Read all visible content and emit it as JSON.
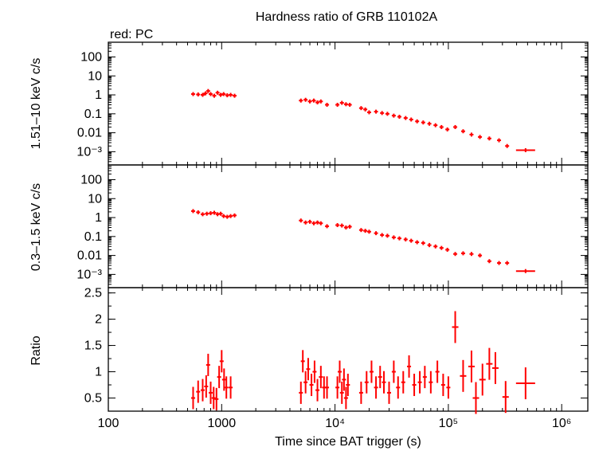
{
  "title": "Hardness ratio of GRB 110102A",
  "subtitle": "red: PC",
  "colors": {
    "series": "#ff0000",
    "axes": "#000000",
    "background": "#ffffff"
  },
  "x_axis": {
    "label": "Time since BAT trigger (s)",
    "scale": "log",
    "range": [
      100,
      1700000
    ],
    "tick_labels": [
      "100",
      "1000",
      "10⁴",
      "10⁵",
      "10⁶"
    ]
  },
  "chart_data": [
    {
      "type": "scatter",
      "panel": "hard band",
      "ylabel": "1.51–10 keV c/s",
      "yscale": "log",
      "ylim": [
        0.0002,
        600
      ],
      "ytick_labels": [
        "100",
        "10",
        "1",
        "0.1",
        "0.01",
        "10⁻³"
      ],
      "grid": false,
      "series": [
        {
          "name": "PC",
          "points": [
            [
              560,
              1.1
            ],
            [
              620,
              1.05
            ],
            [
              680,
              1.0
            ],
            [
              720,
              1.2
            ],
            [
              760,
              1.6
            ],
            [
              800,
              1.1
            ],
            [
              860,
              0.9
            ],
            [
              920,
              1.3
            ],
            [
              980,
              1.0
            ],
            [
              1040,
              1.1
            ],
            [
              1120,
              0.95
            ],
            [
              1200,
              1.0
            ],
            [
              1300,
              0.9
            ],
            [
              5000,
              0.5
            ],
            [
              5500,
              0.55
            ],
            [
              6000,
              0.45
            ],
            [
              6500,
              0.5
            ],
            [
              7000,
              0.4
            ],
            [
              7500,
              0.45
            ],
            [
              8500,
              0.3
            ],
            [
              10500,
              0.3
            ],
            [
              11500,
              0.38
            ],
            [
              12500,
              0.32
            ],
            [
              13500,
              0.3
            ],
            [
              17000,
              0.2
            ],
            [
              18500,
              0.17
            ],
            [
              20000,
              0.12
            ],
            [
              23000,
              0.13
            ],
            [
              26000,
              0.11
            ],
            [
              29000,
              0.1
            ],
            [
              33000,
              0.08
            ],
            [
              37000,
              0.07
            ],
            [
              42000,
              0.06
            ],
            [
              47000,
              0.05
            ],
            [
              53000,
              0.04
            ],
            [
              60000,
              0.035
            ],
            [
              68000,
              0.03
            ],
            [
              77000,
              0.025
            ],
            [
              87000,
              0.02
            ],
            [
              98000,
              0.015
            ],
            [
              115000,
              0.02
            ],
            [
              135000,
              0.012
            ],
            [
              160000,
              0.008
            ],
            [
              190000,
              0.006
            ],
            [
              230000,
              0.005
            ],
            [
              280000,
              0.004
            ],
            [
              330000,
              0.002
            ],
            [
              480000,
              0.0012
            ]
          ]
        }
      ]
    },
    {
      "type": "scatter",
      "panel": "soft band",
      "ylabel": "0.3–1.5 keV c/s",
      "yscale": "log",
      "ylim": [
        0.0002,
        600
      ],
      "ytick_labels": [
        "100",
        "10",
        "1",
        "0.1",
        "0.01",
        "10⁻³"
      ],
      "grid": false,
      "series": [
        {
          "name": "PC",
          "points": [
            [
              560,
              2.2
            ],
            [
              620,
              1.9
            ],
            [
              680,
              1.5
            ],
            [
              740,
              1.6
            ],
            [
              800,
              1.7
            ],
            [
              860,
              1.8
            ],
            [
              920,
              1.5
            ],
            [
              980,
              1.6
            ],
            [
              1040,
              1.2
            ],
            [
              1120,
              1.1
            ],
            [
              1200,
              1.2
            ],
            [
              1300,
              1.3
            ],
            [
              5000,
              0.7
            ],
            [
              5500,
              0.55
            ],
            [
              6000,
              0.6
            ],
            [
              6500,
              0.5
            ],
            [
              7000,
              0.55
            ],
            [
              7500,
              0.5
            ],
            [
              8500,
              0.35
            ],
            [
              10500,
              0.4
            ],
            [
              11500,
              0.38
            ],
            [
              12500,
              0.3
            ],
            [
              13500,
              0.33
            ],
            [
              17000,
              0.22
            ],
            [
              18500,
              0.2
            ],
            [
              20000,
              0.18
            ],
            [
              23000,
              0.15
            ],
            [
              26000,
              0.12
            ],
            [
              29000,
              0.11
            ],
            [
              33000,
              0.09
            ],
            [
              37000,
              0.08
            ],
            [
              42000,
              0.07
            ],
            [
              47000,
              0.06
            ],
            [
              53000,
              0.05
            ],
            [
              60000,
              0.045
            ],
            [
              68000,
              0.035
            ],
            [
              77000,
              0.03
            ],
            [
              87000,
              0.025
            ],
            [
              98000,
              0.02
            ],
            [
              115000,
              0.012
            ],
            [
              135000,
              0.013
            ],
            [
              160000,
              0.012
            ],
            [
              190000,
              0.01
            ],
            [
              230000,
              0.005
            ],
            [
              280000,
              0.004
            ],
            [
              330000,
              0.004
            ],
            [
              480000,
              0.0015
            ]
          ]
        }
      ]
    },
    {
      "type": "scatter",
      "panel": "ratio",
      "ylabel": "Ratio",
      "yscale": "linear",
      "ylim": [
        0.25,
        2.6
      ],
      "ytick_labels": [
        "2.5",
        "2",
        "1.5",
        "1",
        "0.5"
      ],
      "grid": false,
      "series": [
        {
          "name": "PC",
          "points": [
            [
              560,
              0.5
            ],
            [
              620,
              0.62
            ],
            [
              680,
              0.65
            ],
            [
              730,
              0.72
            ],
            [
              760,
              1.13
            ],
            [
              800,
              0.6
            ],
            [
              850,
              0.5
            ],
            [
              900,
              0.48
            ],
            [
              950,
              0.9
            ],
            [
              1000,
              1.2
            ],
            [
              1050,
              0.85
            ],
            [
              1100,
              0.7
            ],
            [
              1200,
              0.7
            ],
            [
              5000,
              0.6
            ],
            [
              5200,
              1.2
            ],
            [
              5500,
              0.8
            ],
            [
              5800,
              1.05
            ],
            [
              6200,
              0.75
            ],
            [
              6600,
              1.0
            ],
            [
              7000,
              0.65
            ],
            [
              7500,
              0.9
            ],
            [
              8000,
              0.7
            ],
            [
              8500,
              0.7
            ],
            [
              10500,
              0.7
            ],
            [
              11000,
              1.0
            ],
            [
              11500,
              0.6
            ],
            [
              12000,
              0.85
            ],
            [
              12500,
              0.5
            ],
            [
              13000,
              0.75
            ],
            [
              17000,
              0.6
            ],
            [
              19000,
              0.8
            ],
            [
              21000,
              1.0
            ],
            [
              23000,
              0.7
            ],
            [
              25000,
              0.9
            ],
            [
              27000,
              0.8
            ],
            [
              30000,
              0.6
            ],
            [
              33000,
              1.0
            ],
            [
              36000,
              0.7
            ],
            [
              40000,
              0.8
            ],
            [
              45000,
              1.1
            ],
            [
              50000,
              0.75
            ],
            [
              56000,
              0.8
            ],
            [
              62000,
              0.9
            ],
            [
              70000,
              0.8
            ],
            [
              80000,
              1.0
            ],
            [
              90000,
              0.75
            ],
            [
              100000,
              0.7
            ],
            [
              115000,
              1.85
            ],
            [
              135000,
              0.92
            ],
            [
              160000,
              1.1
            ],
            [
              175000,
              0.5
            ],
            [
              200000,
              0.85
            ],
            [
              230000,
              1.15
            ],
            [
              260000,
              1.07
            ],
            [
              320000,
              0.52
            ],
            [
              480000,
              0.78
            ]
          ]
        }
      ]
    }
  ]
}
